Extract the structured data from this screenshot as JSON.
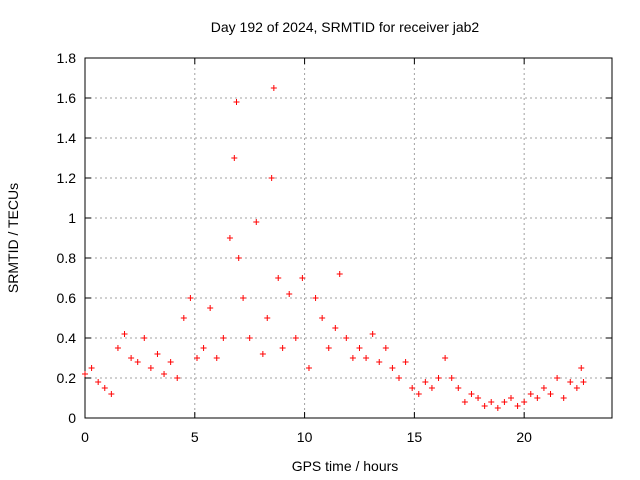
{
  "chart_data": {
    "type": "scatter",
    "title": "Day 192 of 2024, SRMTID for receiver jab2",
    "xlabel": "GPS time / hours",
    "ylabel": "SRMTID / TECUs",
    "xlim": [
      0,
      24
    ],
    "ylim": [
      0,
      1.8
    ],
    "xticks": [
      0,
      5,
      10,
      15,
      20
    ],
    "xtick_labels": [
      "0",
      "5",
      "10",
      "15",
      "20"
    ],
    "yticks": [
      0,
      0.2,
      0.4,
      0.6,
      0.8,
      1,
      1.2,
      1.4,
      1.6,
      1.8
    ],
    "ytick_labels": [
      "0",
      "0.2",
      "0.4",
      "0.6",
      "0.8",
      "1",
      "1.2",
      "1.4",
      "1.6",
      "1.8"
    ],
    "grid": true,
    "marker": "+",
    "marker_color": "#ff0000",
    "series": [
      {
        "name": "SRMTID",
        "x": [
          0.0,
          0.3,
          0.6,
          0.9,
          1.2,
          1.5,
          1.8,
          2.1,
          2.4,
          2.7,
          3.0,
          3.3,
          3.6,
          3.9,
          4.2,
          4.5,
          4.8,
          5.1,
          5.4,
          5.7,
          6.0,
          6.3,
          6.6,
          6.8,
          6.9,
          7.0,
          7.2,
          7.5,
          7.8,
          8.1,
          8.3,
          8.5,
          8.6,
          8.8,
          9.0,
          9.3,
          9.6,
          9.9,
          10.2,
          10.5,
          10.8,
          11.1,
          11.4,
          11.6,
          11.9,
          12.2,
          12.5,
          12.8,
          13.1,
          13.4,
          13.7,
          14.0,
          14.3,
          14.6,
          14.9,
          15.2,
          15.5,
          15.8,
          16.1,
          16.4,
          16.7,
          17.0,
          17.3,
          17.6,
          17.9,
          18.2,
          18.5,
          18.8,
          19.1,
          19.4,
          19.7,
          20.0,
          20.3,
          20.6,
          20.9,
          21.2,
          21.5,
          21.8,
          22.1,
          22.4,
          22.6,
          22.7
        ],
        "y": [
          0.22,
          0.25,
          0.18,
          0.15,
          0.12,
          0.35,
          0.42,
          0.3,
          0.28,
          0.4,
          0.25,
          0.32,
          0.22,
          0.28,
          0.2,
          0.5,
          0.6,
          0.3,
          0.35,
          0.55,
          0.3,
          0.4,
          0.9,
          1.3,
          1.58,
          0.8,
          0.6,
          0.4,
          0.98,
          0.32,
          0.5,
          1.2,
          1.65,
          0.7,
          0.35,
          0.62,
          0.4,
          0.7,
          0.25,
          0.6,
          0.5,
          0.35,
          0.45,
          0.72,
          0.4,
          0.3,
          0.35,
          0.3,
          0.42,
          0.28,
          0.35,
          0.25,
          0.2,
          0.28,
          0.15,
          0.12,
          0.18,
          0.15,
          0.2,
          0.3,
          0.2,
          0.15,
          0.08,
          0.12,
          0.1,
          0.06,
          0.08,
          0.05,
          0.08,
          0.1,
          0.06,
          0.08,
          0.12,
          0.1,
          0.15,
          0.12,
          0.2,
          0.1,
          0.18,
          0.15,
          0.25,
          0.18
        ]
      }
    ]
  }
}
